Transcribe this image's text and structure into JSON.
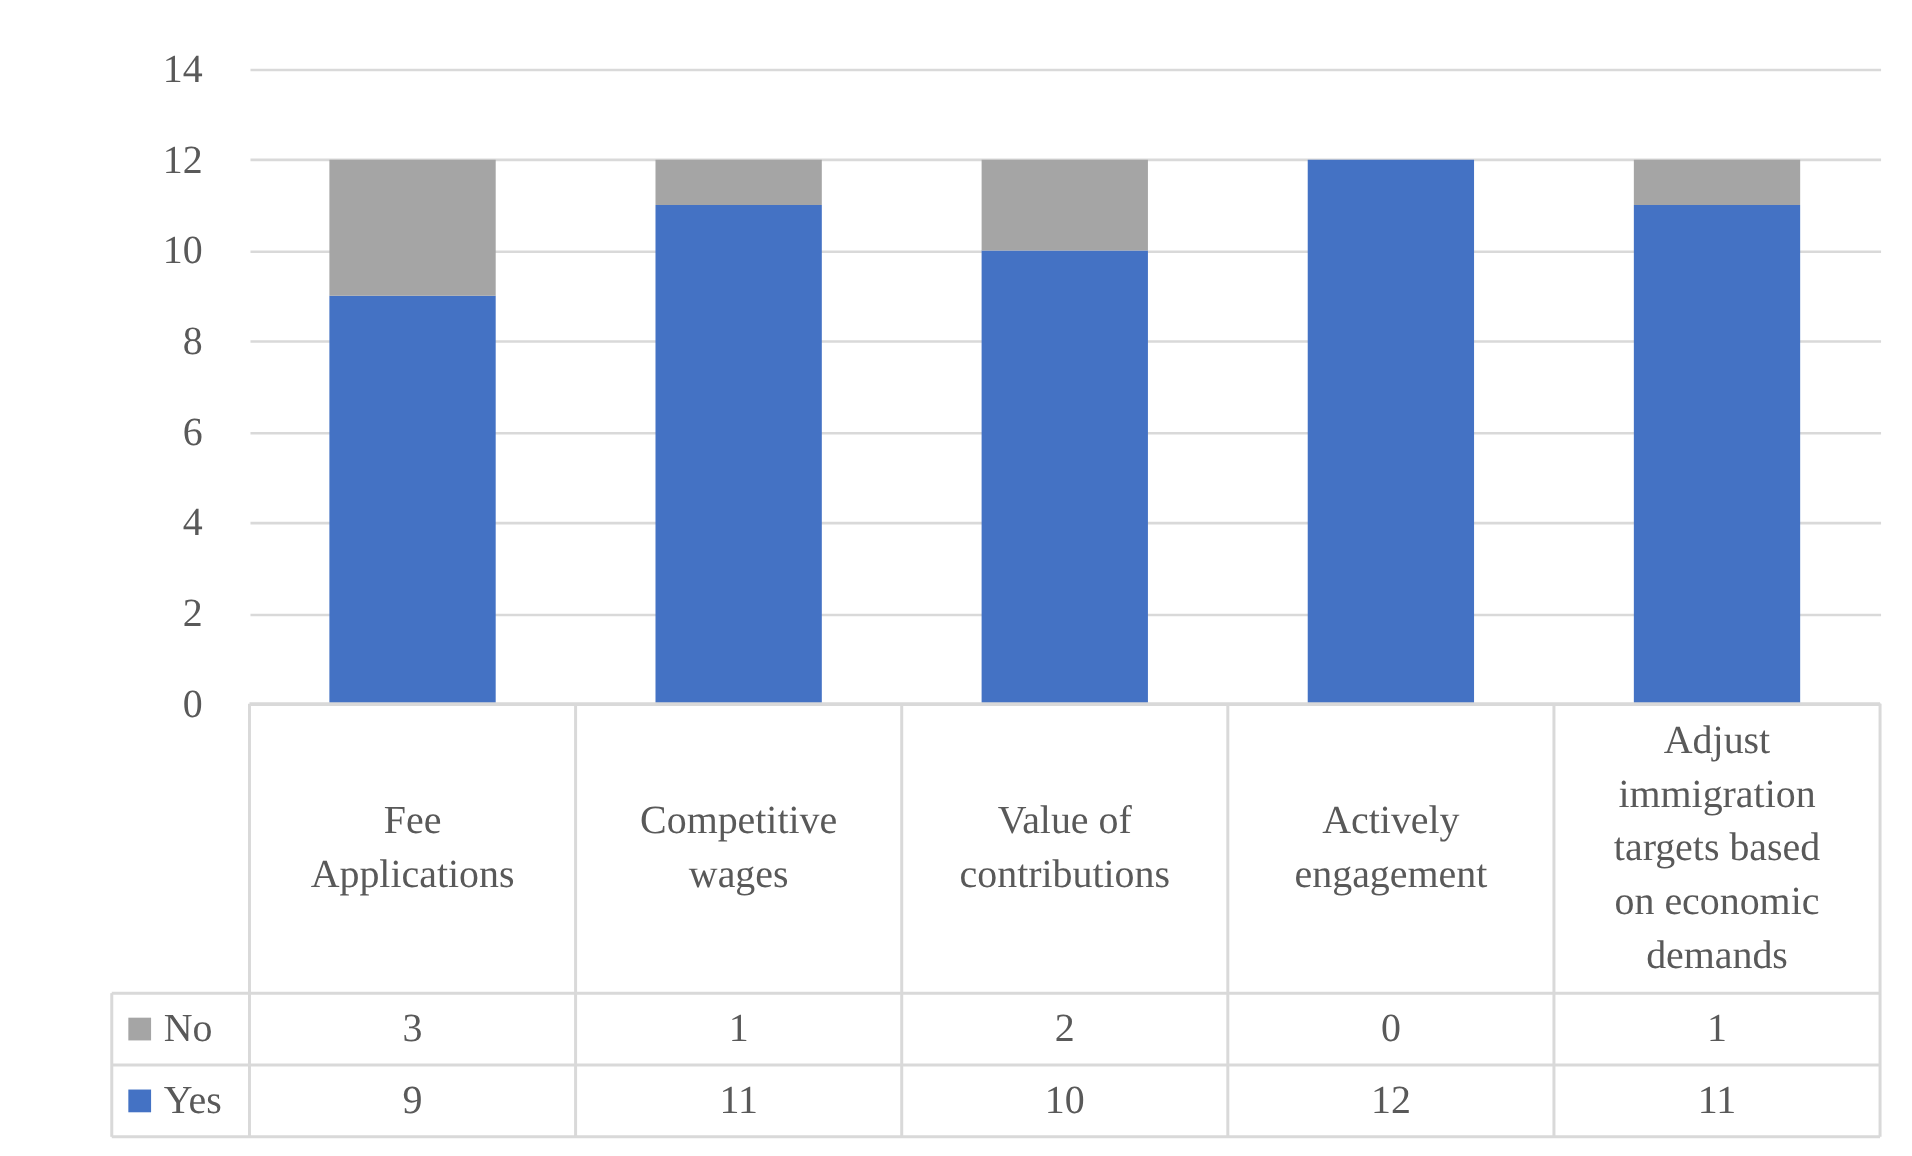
{
  "chart_data": {
    "type": "bar",
    "stacked": true,
    "categories": [
      "Fee Applications",
      "Competitive wages",
      "Value of contributions",
      "Actively engagement",
      "Adjust immigration targets based on economic demands"
    ],
    "series": [
      {
        "name": "Yes",
        "color": "#4472c4",
        "values": [
          9,
          11,
          10,
          12,
          11
        ]
      },
      {
        "name": "No",
        "color": "#a5a5a5",
        "values": [
          3,
          1,
          2,
          0,
          1
        ]
      }
    ],
    "ylim": [
      0,
      14
    ],
    "yticks": [
      0,
      2,
      4,
      6,
      8,
      10,
      12,
      14
    ],
    "grid": "y",
    "legend": "bottom left",
    "data_labels": true
  }
}
